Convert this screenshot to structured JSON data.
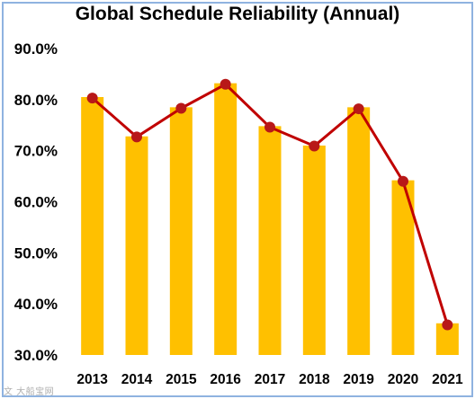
{
  "chart_data": {
    "type": "bar",
    "title": "Global Schedule Reliability (Annual)",
    "categories": [
      "2013",
      "2014",
      "2015",
      "2016",
      "2017",
      "2018",
      "2019",
      "2020",
      "2021"
    ],
    "series": [
      {
        "type": "bar",
        "values": [
          80.5,
          72.8,
          78.5,
          83.2,
          74.8,
          71.0,
          78.5,
          64.2,
          36.2
        ]
      },
      {
        "type": "line",
        "values": [
          80.3,
          72.7,
          78.3,
          83.0,
          74.6,
          70.9,
          78.2,
          64.0,
          35.9
        ]
      }
    ],
    "ylim": [
      30,
      90
    ],
    "yticks": [
      "30.0%",
      "40.0%",
      "50.0%",
      "60.0%",
      "70.0%",
      "80.0%",
      "90.0%"
    ],
    "xlabel": "",
    "ylabel": "",
    "grid": false,
    "legend": "none"
  },
  "colors": {
    "bar": "#ffc000",
    "line": "#c00000",
    "marker": "#b81818",
    "frame": "#8fb3e0"
  },
  "watermark": "文 大船宝网"
}
